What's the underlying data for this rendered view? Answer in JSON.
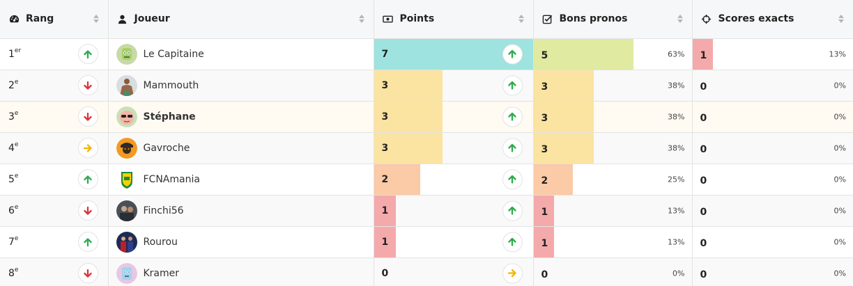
{
  "colors": {
    "teal": "#9ee3df",
    "green_light": "#e0eaa0",
    "yellow": "#fbe3a1",
    "orange": "#fbcaa6",
    "red": "#f4a9ab",
    "arrow_up": "#2eaa4f",
    "arrow_down": "#d9343a",
    "arrow_right": "#f4b400"
  },
  "header": {
    "rang": {
      "label": "Rang",
      "icon": "dashboard-icon"
    },
    "joueur": {
      "label": "Joueur",
      "icon": "user-icon"
    },
    "points": {
      "label": "Points",
      "icon": "money-bill-icon"
    },
    "bons": {
      "label": "Bons pronos",
      "icon": "check-square-icon"
    },
    "scores": {
      "label": "Scores exacts",
      "icon": "crosshairs-icon"
    }
  },
  "rows": [
    {
      "rank": "1",
      "suffix": "er",
      "trend": "up",
      "name": "Le Capitaine",
      "avatar": "green-face-avatar",
      "points": "7",
      "points_frac": 1.0,
      "points_color": "teal",
      "points_trend": "up",
      "bons": "5",
      "bons_frac": 0.63,
      "bons_color": "green_light",
      "bons_pct": "63%",
      "scores": "1",
      "scores_frac": 0.13,
      "scores_color": "red",
      "scores_pct": "13%"
    },
    {
      "rank": "2",
      "suffix": "e",
      "trend": "down",
      "name": "Mammouth",
      "avatar": "bodybuilder-avatar",
      "points": "3",
      "points_frac": 0.43,
      "points_color": "yellow",
      "points_trend": "up",
      "bons": "3",
      "bons_frac": 0.38,
      "bons_color": "yellow",
      "bons_pct": "38%",
      "scores": "0",
      "scores_frac": 0,
      "scores_color": "red",
      "scores_pct": "0%"
    },
    {
      "rank": "3",
      "suffix": "e",
      "trend": "down",
      "name": "Stéphane",
      "avatar": "sunglasses-face-avatar",
      "me": true,
      "points": "3",
      "points_frac": 0.43,
      "points_color": "yellow",
      "points_trend": "up",
      "bons": "3",
      "bons_frac": 0.38,
      "bons_color": "yellow",
      "bons_pct": "38%",
      "scores": "0",
      "scores_frac": 0,
      "scores_color": "red",
      "scores_pct": "0%"
    },
    {
      "rank": "4",
      "suffix": "e",
      "trend": "right",
      "name": "Gavroche",
      "avatar": "gavroche-avatar",
      "points": "3",
      "points_frac": 0.43,
      "points_color": "yellow",
      "points_trend": "up",
      "bons": "3",
      "bons_frac": 0.38,
      "bons_color": "yellow",
      "bons_pct": "38%",
      "scores": "0",
      "scores_frac": 0,
      "scores_color": "red",
      "scores_pct": "0%"
    },
    {
      "rank": "5",
      "suffix": "e",
      "trend": "up",
      "name": "FCNAmania",
      "avatar": "fcna-badge-avatar",
      "points": "2",
      "points_frac": 0.29,
      "points_color": "orange",
      "points_trend": "up",
      "bons": "2",
      "bons_frac": 0.25,
      "bons_color": "orange",
      "bons_pct": "25%",
      "scores": "0",
      "scores_frac": 0,
      "scores_color": "red",
      "scores_pct": "0%"
    },
    {
      "rank": "6",
      "suffix": "e",
      "trend": "down",
      "name": "Finchi56",
      "avatar": "photo-avatar",
      "points": "1",
      "points_frac": 0.14,
      "points_color": "red",
      "points_trend": "up",
      "bons": "1",
      "bons_frac": 0.13,
      "bons_color": "red",
      "bons_pct": "13%",
      "scores": "0",
      "scores_frac": 0,
      "scores_color": "red",
      "scores_pct": "0%"
    },
    {
      "rank": "7",
      "suffix": "e",
      "trend": "up",
      "name": "Rourou",
      "avatar": "players-avatar",
      "points": "1",
      "points_frac": 0.14,
      "points_color": "red",
      "points_trend": "up",
      "bons": "1",
      "bons_frac": 0.13,
      "bons_color": "red",
      "bons_pct": "13%",
      "scores": "0",
      "scores_frac": 0,
      "scores_color": "red",
      "scores_pct": "0%"
    },
    {
      "rank": "8",
      "suffix": "e",
      "trend": "down",
      "name": "Kramer",
      "avatar": "blue-face-avatar",
      "points": "0",
      "points_frac": 0,
      "points_color": "red",
      "points_trend": "right",
      "bons": "0",
      "bons_frac": 0,
      "bons_color": "red",
      "bons_pct": "0%",
      "scores": "0",
      "scores_frac": 0,
      "scores_color": "red",
      "scores_pct": "0%"
    }
  ]
}
